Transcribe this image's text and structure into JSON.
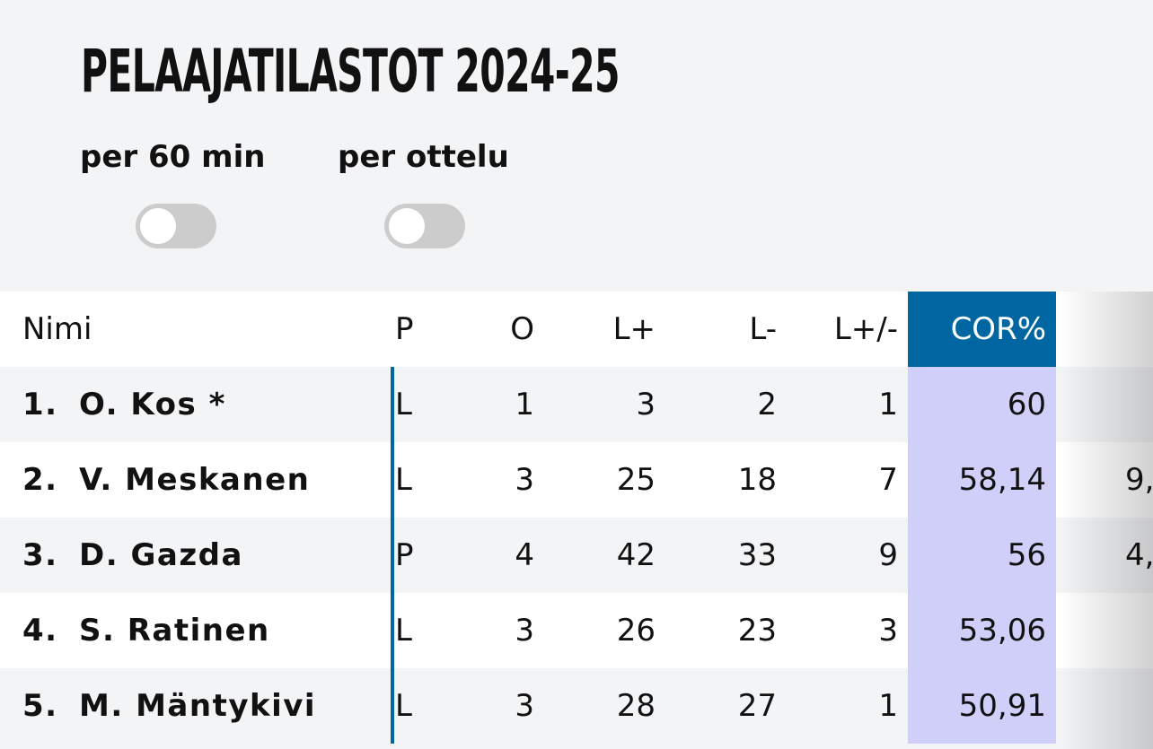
{
  "header": {
    "title": "PELAAJATILASTOT 2024-25",
    "toggles": [
      {
        "label": "per 60 min"
      },
      {
        "label": "per ottelu"
      }
    ]
  },
  "table": {
    "columns": [
      "Nimi",
      "P",
      "O",
      "L+",
      "L-",
      "L+/-",
      "COR%"
    ],
    "rows": [
      {
        "rank": "1.",
        "name": "O. Kos *",
        "position": "L",
        "games": 1,
        "plus": 3,
        "minus": 2,
        "diff": 1,
        "cor": "60",
        "next": null
      },
      {
        "rank": "2.",
        "name": "V. Meskanen",
        "position": "L",
        "games": 3,
        "plus": 25,
        "minus": 18,
        "diff": 7,
        "cor": "58,14",
        "next": "9,"
      },
      {
        "rank": "3.",
        "name": "D. Gazda",
        "position": "P",
        "games": 4,
        "plus": 42,
        "minus": 33,
        "diff": 9,
        "cor": "56",
        "next": "4,"
      },
      {
        "rank": "4.",
        "name": "S. Ratinen",
        "position": "L",
        "games": 3,
        "plus": 26,
        "minus": 23,
        "diff": 3,
        "cor": "53,06",
        "next": null
      },
      {
        "rank": "5.",
        "name": "M. Mäntykivi",
        "position": "L",
        "games": 3,
        "plus": 28,
        "minus": 27,
        "diff": 1,
        "cor": "50,91",
        "next": null
      }
    ]
  }
}
